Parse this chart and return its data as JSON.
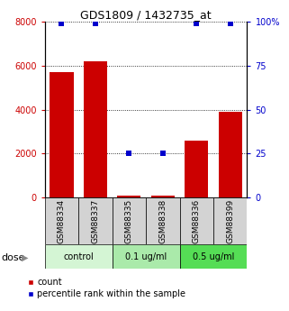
{
  "title": "GDS1809 / 1432735_at",
  "samples": [
    "GSM88334",
    "GSM88337",
    "GSM88335",
    "GSM88338",
    "GSM88336",
    "GSM88399"
  ],
  "counts": [
    5700,
    6200,
    100,
    100,
    2600,
    3900
  ],
  "percentiles": [
    99,
    99,
    25,
    25,
    99,
    99
  ],
  "bar_color": "#cc0000",
  "dot_color": "#0000cc",
  "left_ylim": [
    0,
    8000
  ],
  "right_ylim": [
    0,
    100
  ],
  "left_yticks": [
    0,
    2000,
    4000,
    6000,
    8000
  ],
  "right_yticks": [
    0,
    25,
    50,
    75,
    100
  ],
  "left_yticklabels": [
    "0",
    "2000",
    "4000",
    "6000",
    "8000"
  ],
  "right_yticklabels": [
    "0",
    "25",
    "50",
    "75",
    "100%"
  ],
  "dose_groups": [
    {
      "label": "control",
      "color": "#d4f5d4",
      "start": 0,
      "end": 2
    },
    {
      "label": "0.1 ug/ml",
      "color": "#aaeaaa",
      "start": 2,
      "end": 4
    },
    {
      "label": "0.5 ug/ml",
      "color": "#55dd55",
      "start": 4,
      "end": 6
    }
  ],
  "dose_label": "dose",
  "legend_count_label": "count",
  "legend_pct_label": "percentile rank within the sample",
  "tick_label_color_left": "#cc0000",
  "tick_label_color_right": "#0000cc",
  "sample_box_color": "#d3d3d3"
}
